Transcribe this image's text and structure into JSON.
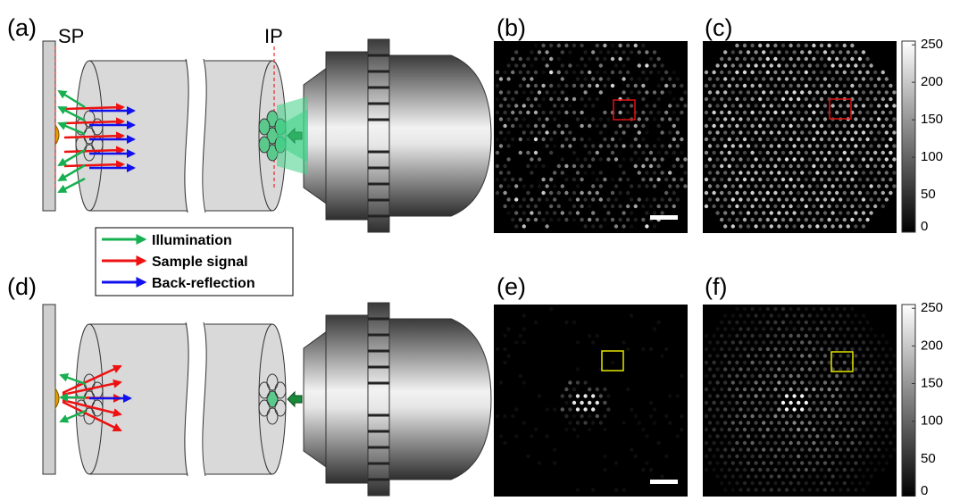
{
  "panel_labels": [
    "(a)",
    "(b)",
    "(c)",
    "(d)",
    "(e)",
    "(f)"
  ],
  "planes": {
    "sample": "SP",
    "image": "IP"
  },
  "legend": [
    {
      "label": "Illumination",
      "color": "#16b050"
    },
    {
      "label": "Sample signal",
      "color": "#ee1111"
    },
    {
      "label": "Back-reflection",
      "color": "#1111ee"
    }
  ],
  "colorbar": {
    "range": [
      0,
      255
    ],
    "ticks": [
      0,
      50,
      100,
      150,
      200,
      250
    ]
  }
}
